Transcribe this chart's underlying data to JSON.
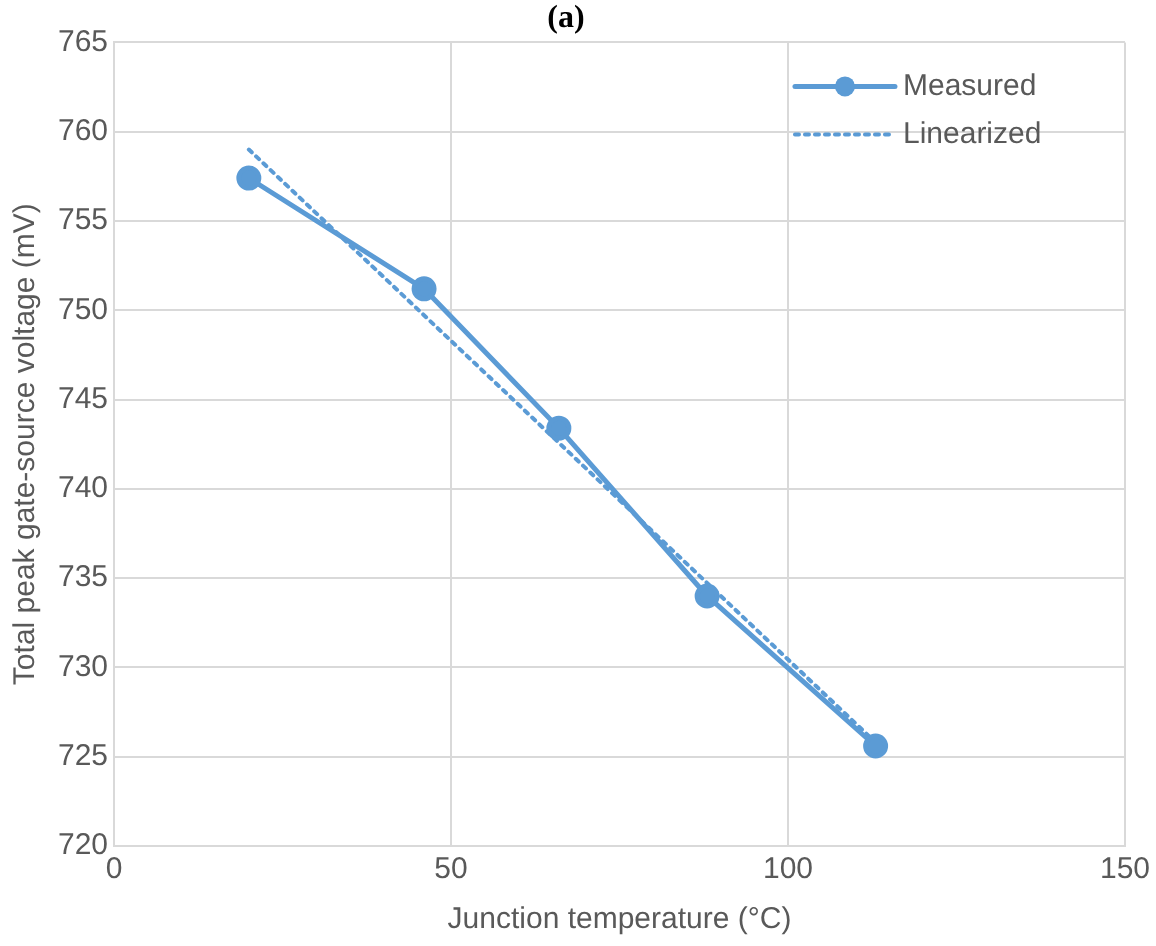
{
  "chart_data": {
    "type": "line",
    "title": "(a)",
    "xlabel": "Junction temperature (°C)",
    "ylabel": "Total peak gate-source voltage (mV)",
    "xlim": [
      0,
      150
    ],
    "xticks": [
      0,
      50,
      100,
      150
    ],
    "ylim": [
      720,
      765
    ],
    "yticks": [
      720,
      725,
      730,
      735,
      740,
      745,
      750,
      755,
      760,
      765
    ],
    "grid": true,
    "legend": "top right",
    "series": [
      {
        "name": "Measured",
        "color": "#5b9bd5",
        "x": [
          20,
          46,
          66,
          88,
          113
        ],
        "values": [
          757.4,
          751.2,
          743.4,
          734,
          725.6
        ],
        "marker": "circle",
        "line_style": "solid"
      },
      {
        "name": "Linearized",
        "color": "#5b9bd5",
        "x": [
          20,
          113
        ],
        "values": [
          759,
          725.8
        ],
        "marker": "none",
        "line_style": "dotted"
      }
    ]
  }
}
